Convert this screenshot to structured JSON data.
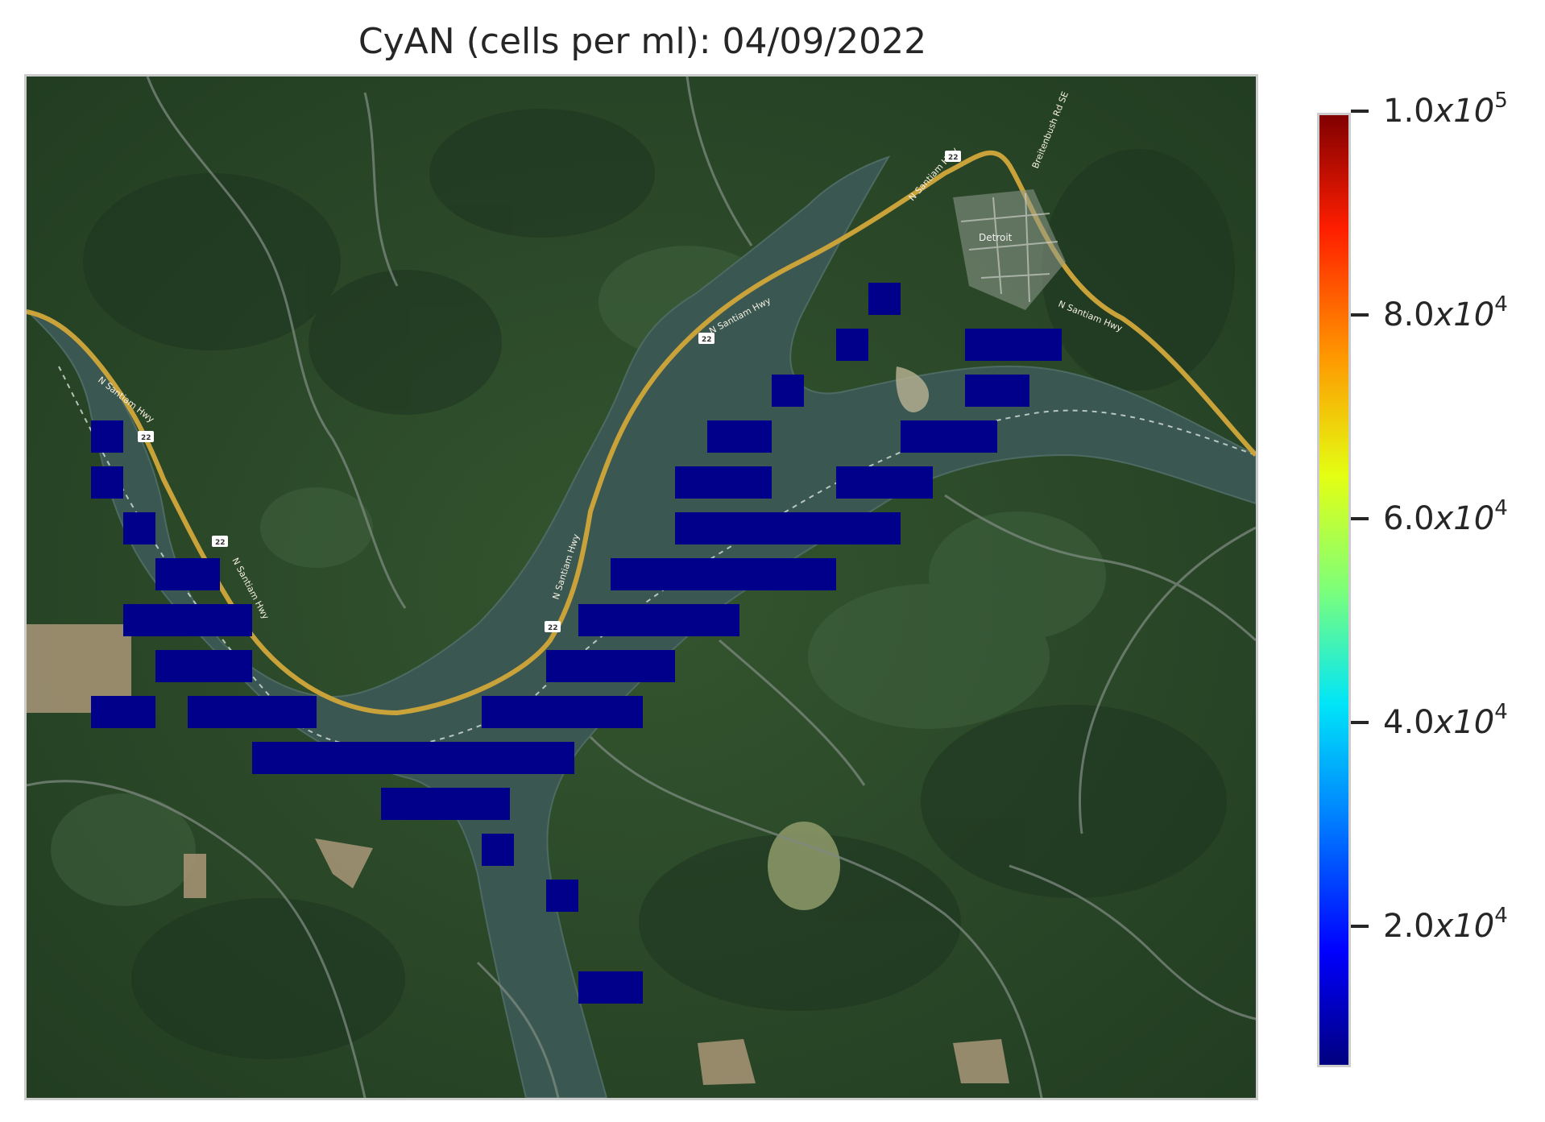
{
  "title": "CyAN (cells per ml): 04/09/2022",
  "colorbar": {
    "colormap": "jet",
    "ticks": [
      {
        "mantissa": "2.0",
        "times": "x10",
        "exp": "4",
        "value": 20000
      },
      {
        "mantissa": "4.0",
        "times": "x10",
        "exp": "4",
        "value": 40000
      },
      {
        "mantissa": "6.0",
        "times": "x10",
        "exp": "4",
        "value": 60000
      },
      {
        "mantissa": "8.0",
        "times": "x10",
        "exp": "4",
        "value": 80000
      },
      {
        "mantissa": "1.0",
        "times": "x10",
        "exp": "5",
        "value": 100000
      }
    ]
  },
  "map_labels": {
    "town": "Detroit",
    "highway": "N Santiam Hwy",
    "road": "Breitenbush Rd SE",
    "route_shield": "22"
  },
  "overlay": {
    "cell_color": "#00008b",
    "cell_value_range": "≈ 7,000 cells per ml (lowest colorbar level)"
  },
  "colors": {
    "forest": "#2b4a2a",
    "lake": "#3a5752",
    "highway": "#c9a23a",
    "road": "#7d8a80"
  }
}
